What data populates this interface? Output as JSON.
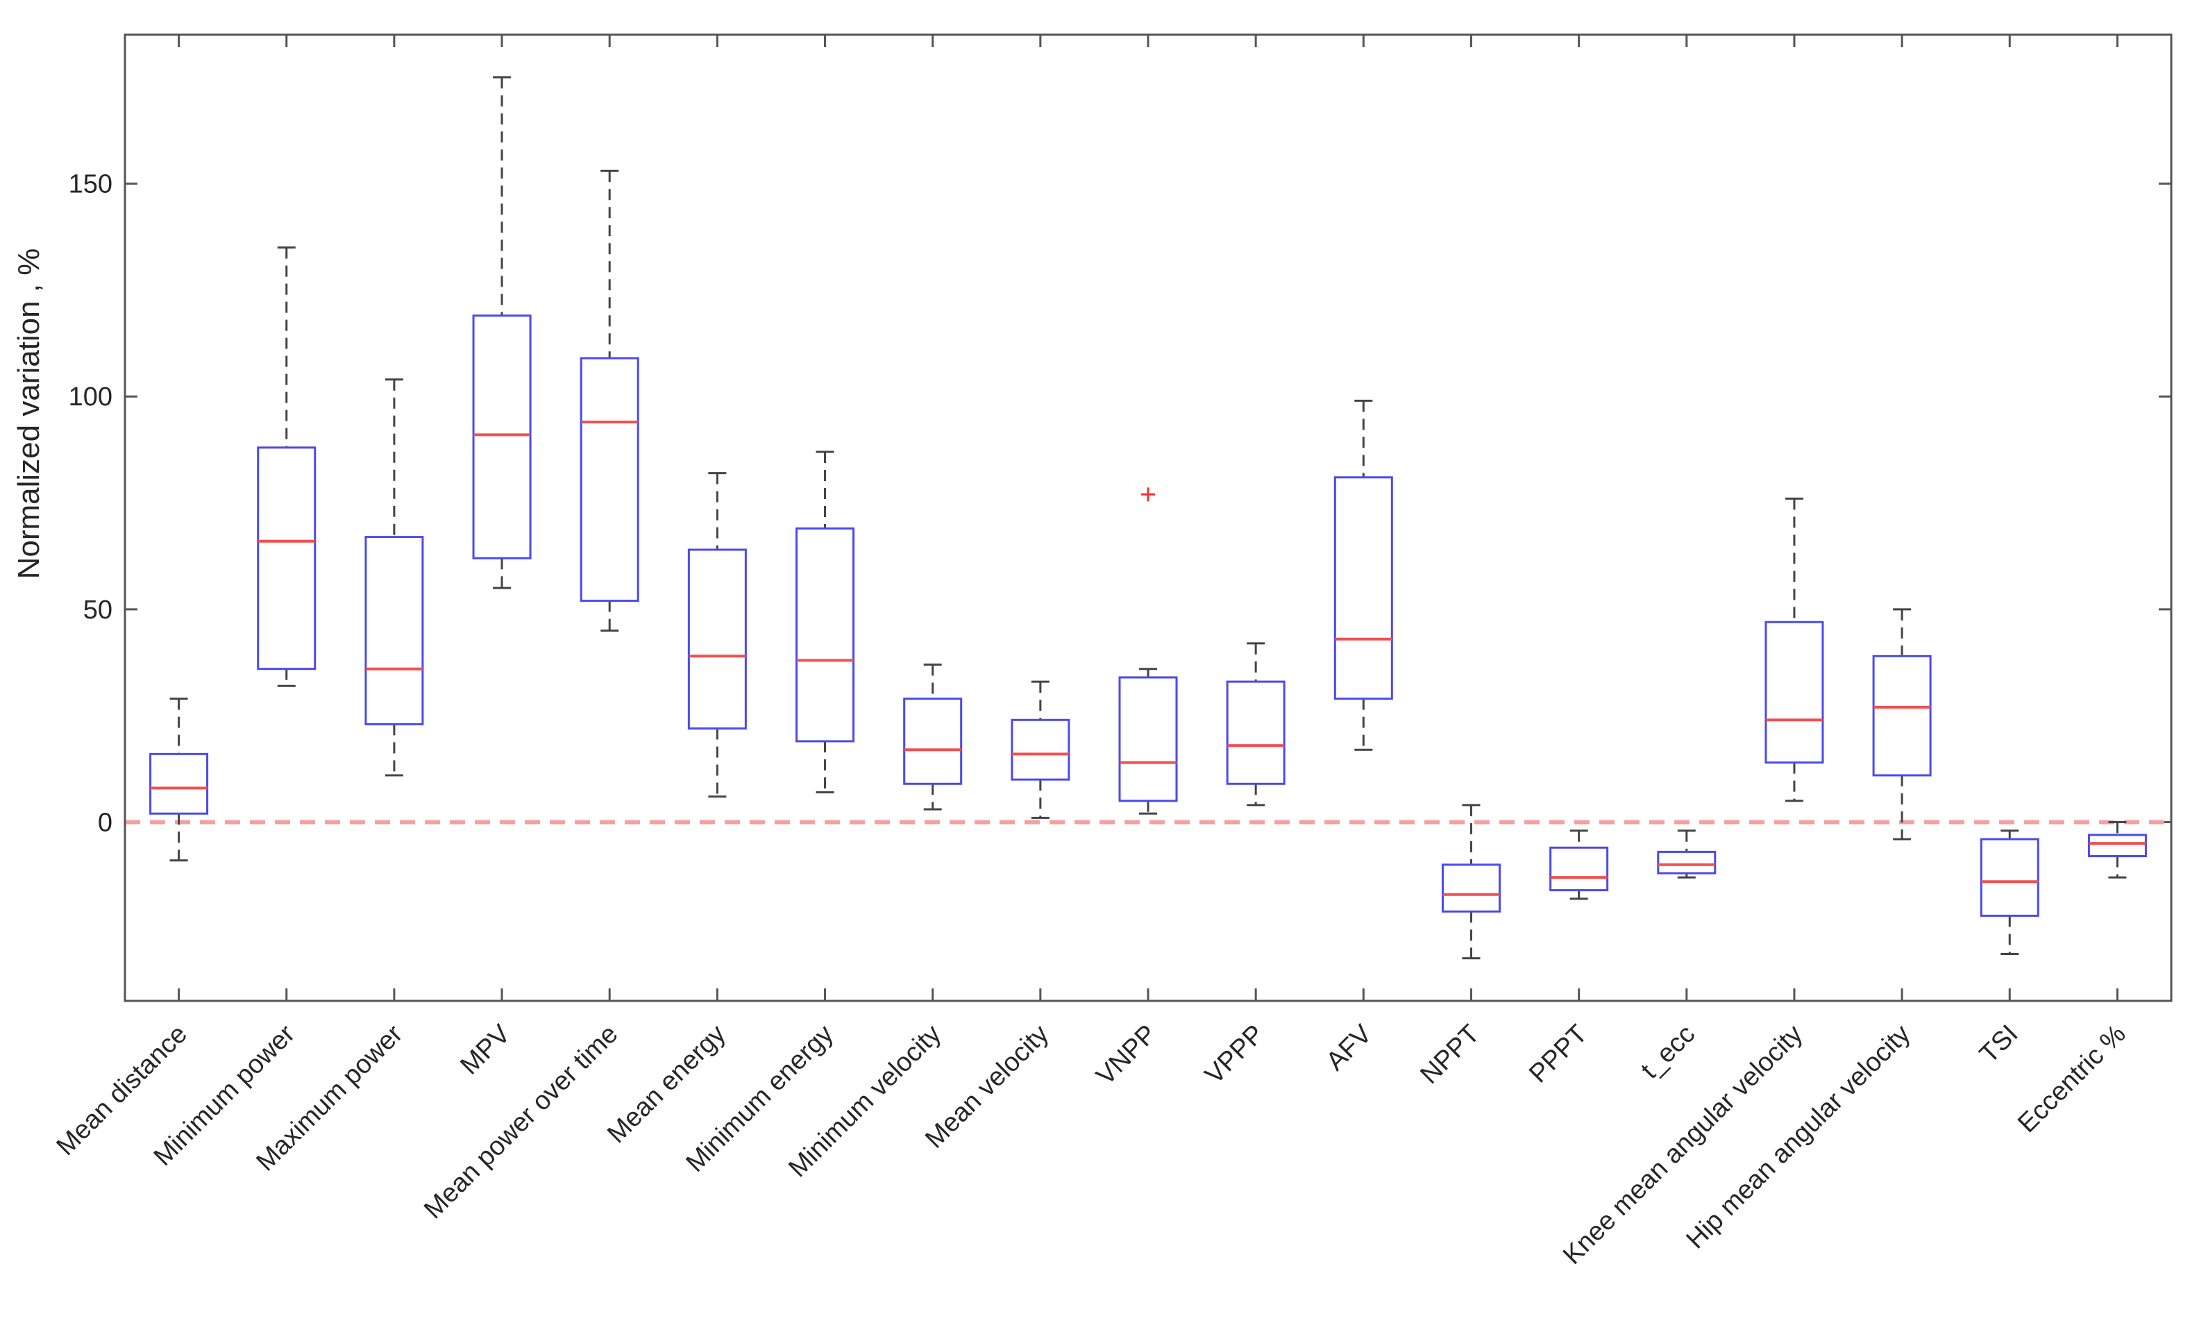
{
  "chart_data": {
    "type": "boxplot",
    "title": "",
    "xlabel": "",
    "ylabel": "Normalized variation , %",
    "ylim": [
      -42,
      185
    ],
    "yticks": [
      0,
      50,
      100,
      150
    ],
    "reference_line": {
      "y": 0,
      "style": "dashed",
      "color": "#f4a0a0"
    },
    "colors": {
      "box": "#4a4af0",
      "median": "#f05050",
      "whisker": "#444444",
      "outlier": "#f03030",
      "frame": "#555555"
    },
    "categories": [
      "Mean distance",
      "Minimum power",
      "Maximum power",
      "MPV",
      "Mean power over time",
      "Mean energy",
      "Minimum energy",
      "Minimum velocity",
      "Mean velocity",
      "VNPP",
      "VPPP",
      "AFV",
      "NPPT",
      "PPPT",
      "t_ecc",
      "Knee mean angular velocity",
      "Hip mean angular velocity",
      "TSI",
      "Eccentric %"
    ],
    "boxes": [
      {
        "min": -9,
        "q1": 2,
        "median": 8,
        "q3": 16,
        "max": 29,
        "outliers": []
      },
      {
        "min": 32,
        "q1": 36,
        "median": 66,
        "q3": 88,
        "max": 135,
        "outliers": []
      },
      {
        "min": 11,
        "q1": 23,
        "median": 36,
        "q3": 67,
        "max": 104,
        "outliers": []
      },
      {
        "min": 55,
        "q1": 62,
        "median": 91,
        "q3": 119,
        "max": 175,
        "outliers": []
      },
      {
        "min": 45,
        "q1": 52,
        "median": 94,
        "q3": 109,
        "max": 153,
        "outliers": []
      },
      {
        "min": 6,
        "q1": 22,
        "median": 39,
        "q3": 64,
        "max": 82,
        "outliers": []
      },
      {
        "min": 7,
        "q1": 19,
        "median": 38,
        "q3": 69,
        "max": 87,
        "outliers": []
      },
      {
        "min": 3,
        "q1": 9,
        "median": 17,
        "q3": 29,
        "max": 37,
        "outliers": []
      },
      {
        "min": 1,
        "q1": 10,
        "median": 16,
        "q3": 24,
        "max": 33,
        "outliers": []
      },
      {
        "min": 2,
        "q1": 5,
        "median": 14,
        "q3": 34,
        "max": 36,
        "outliers": [
          77
        ]
      },
      {
        "min": 4,
        "q1": 9,
        "median": 18,
        "q3": 33,
        "max": 42,
        "outliers": []
      },
      {
        "min": 17,
        "q1": 29,
        "median": 43,
        "q3": 81,
        "max": 99,
        "outliers": []
      },
      {
        "min": -32,
        "q1": -21,
        "median": -17,
        "q3": -10,
        "max": 4,
        "outliers": []
      },
      {
        "min": -18,
        "q1": -16,
        "median": -13,
        "q3": -6,
        "max": -2,
        "outliers": []
      },
      {
        "min": -13,
        "q1": -12,
        "median": -10,
        "q3": -7,
        "max": -2,
        "outliers": []
      },
      {
        "min": 5,
        "q1": 14,
        "median": 24,
        "q3": 47,
        "max": 76,
        "outliers": []
      },
      {
        "min": -4,
        "q1": 11,
        "median": 27,
        "q3": 39,
        "max": 50,
        "outliers": []
      },
      {
        "min": -31,
        "q1": -22,
        "median": -14,
        "q3": -4,
        "max": -2,
        "outliers": []
      },
      {
        "min": -13,
        "q1": -8,
        "median": -5,
        "q3": -3,
        "max": 0,
        "outliers": []
      }
    ]
  }
}
